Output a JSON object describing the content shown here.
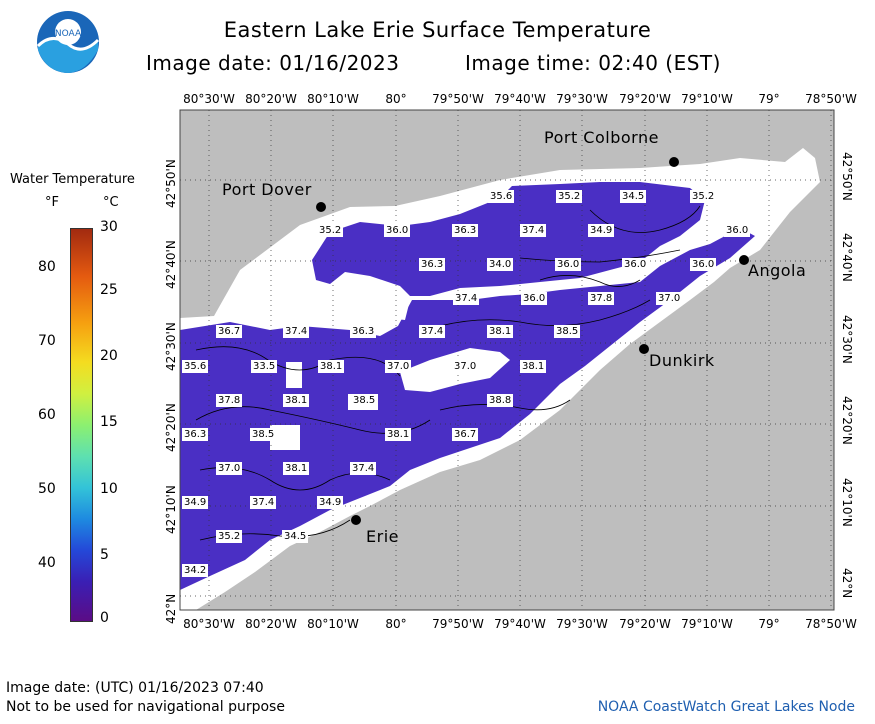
{
  "header": {
    "title": "Eastern Lake Erie Surface Temperature",
    "image_date": "Image date: 01/16/2023",
    "image_time": "Image time: 02:40 (EST)"
  },
  "logo": {
    "text": "NOAA"
  },
  "legend": {
    "title": "Water Temperature",
    "unit_f": "°F",
    "unit_c": "°C",
    "f_ticks": [
      "80",
      "70",
      "60",
      "50",
      "40"
    ],
    "c_ticks": [
      "30",
      "25",
      "20",
      "15",
      "10",
      "5",
      "0"
    ]
  },
  "axes": {
    "lon_labels": [
      "80°30'W",
      "80°20'W",
      "80°10'W",
      "80°",
      "79°50'W",
      "79°40'W",
      "79°30'W",
      "79°20'W",
      "79°10'W",
      "79°",
      "78°50'W"
    ],
    "lat_labels": [
      "42°50'N",
      "42°40'N",
      "42°30'N",
      "42°20'N",
      "42°10'N",
      "42°N"
    ]
  },
  "cities": [
    {
      "name": "Port Colborne"
    },
    {
      "name": "Port Dover"
    },
    {
      "name": "Angola"
    },
    {
      "name": "Dunkirk"
    },
    {
      "name": "Erie"
    }
  ],
  "temperature_labels": [
    {
      "v": "35.6"
    },
    {
      "v": "35.2"
    },
    {
      "v": "34.5"
    },
    {
      "v": "35.2"
    },
    {
      "v": "35.2"
    },
    {
      "v": "36.0"
    },
    {
      "v": "36.3"
    },
    {
      "v": "37.4"
    },
    {
      "v": "34.9"
    },
    {
      "v": "36.0"
    },
    {
      "v": "36.3"
    },
    {
      "v": "34.0"
    },
    {
      "v": "36.0"
    },
    {
      "v": "36.0"
    },
    {
      "v": "36.0"
    },
    {
      "v": "37.4"
    },
    {
      "v": "36.0"
    },
    {
      "v": "37.8"
    },
    {
      "v": "37.0"
    },
    {
      "v": "36.7"
    },
    {
      "v": "37.4"
    },
    {
      "v": "36.3"
    },
    {
      "v": "37.4"
    },
    {
      "v": "38.1"
    },
    {
      "v": "38.5"
    },
    {
      "v": "35.6"
    },
    {
      "v": "33.5"
    },
    {
      "v": "38.1"
    },
    {
      "v": "37.0"
    },
    {
      "v": "37.0"
    },
    {
      "v": "38.1"
    },
    {
      "v": "37.8"
    },
    {
      "v": "38.1"
    },
    {
      "v": "38.5"
    },
    {
      "v": "38.8"
    },
    {
      "v": "36.3"
    },
    {
      "v": "38.5"
    },
    {
      "v": "38.1"
    },
    {
      "v": "36.7"
    },
    {
      "v": "37.0"
    },
    {
      "v": "38.1"
    },
    {
      "v": "37.4"
    },
    {
      "v": "34.9"
    },
    {
      "v": "37.4"
    },
    {
      "v": "34.9"
    },
    {
      "v": "35.2"
    },
    {
      "v": "34.5"
    },
    {
      "v": "34.2"
    }
  ],
  "footer": {
    "utc_date": "Image date: (UTC) 01/16/2023  07:40",
    "disclaimer": "Not to be used for navigational purpose",
    "credit": "NOAA CoastWatch Great Lakes Node"
  },
  "colors": {
    "land": "#bebebe",
    "ice_or_nodata": "#ffffff",
    "water_cold": "#4a2fc4",
    "water_colder": "#5a20b0",
    "credit": "#1f5fb0"
  }
}
